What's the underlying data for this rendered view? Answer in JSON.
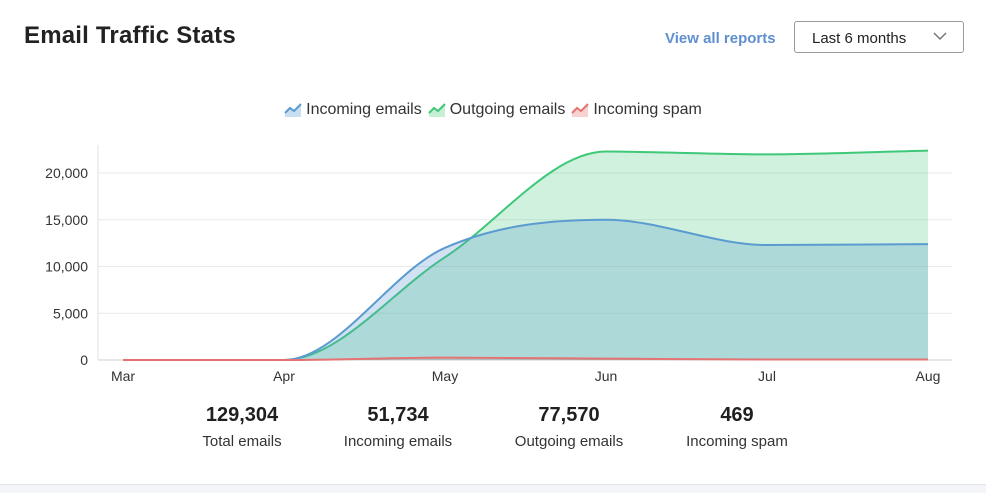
{
  "header": {
    "title": "Email Traffic Stats",
    "view_all_label": "View all reports",
    "range_selected": "Last 6 months"
  },
  "colors": {
    "incoming": "#5b9bd0",
    "outgoing": "#3ec878",
    "spam": "#e57373",
    "link": "#5f8fd0"
  },
  "chart_data": {
    "type": "area",
    "x": [
      "Mar",
      "Apr",
      "May",
      "Jun",
      "Jul",
      "Aug"
    ],
    "series": [
      {
        "name": "Incoming emails",
        "values": [
          0,
          0,
          12000,
          15000,
          12300,
          12400
        ]
      },
      {
        "name": "Outgoing emails",
        "values": [
          0,
          0,
          11000,
          22300,
          22000,
          22400
        ]
      },
      {
        "name": "Incoming spam",
        "values": [
          0,
          0,
          250,
          150,
          50,
          60
        ]
      }
    ],
    "ylim": [
      0,
      23000
    ],
    "yticks": [
      0,
      5000,
      10000,
      15000,
      20000
    ],
    "ytick_labels": [
      "0",
      "5,000",
      "10,000",
      "15,000",
      "20,000"
    ],
    "grid": true,
    "legend_position": "top-center"
  },
  "stats": [
    {
      "value": "129,304",
      "label": "Total emails"
    },
    {
      "value": "51,734",
      "label": "Incoming emails"
    },
    {
      "value": "77,570",
      "label": "Outgoing emails"
    },
    {
      "value": "469",
      "label": "Incoming spam"
    }
  ]
}
